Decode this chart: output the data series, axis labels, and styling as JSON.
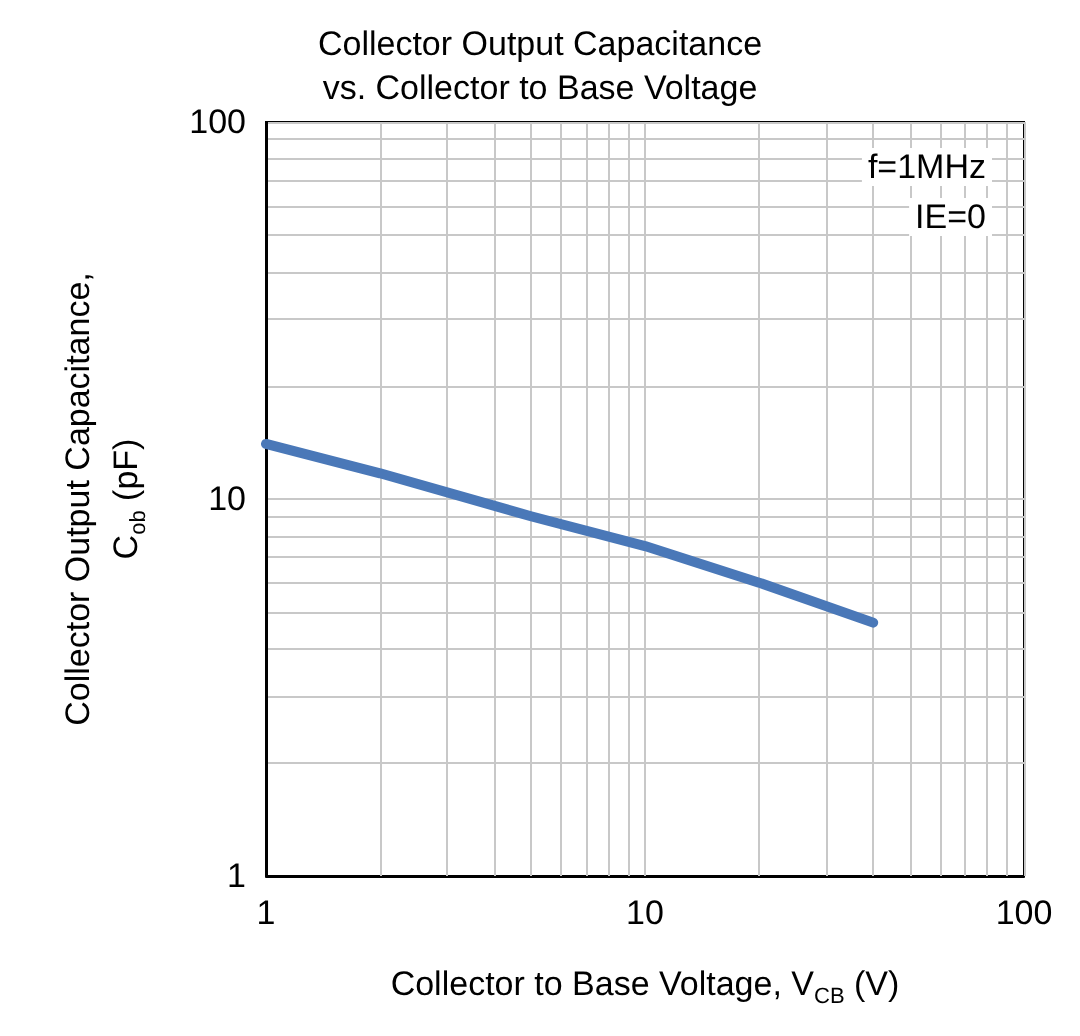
{
  "chart_data": {
    "type": "line",
    "title": "Collector Output Capacitance\nvs. Collector to Base Voltage",
    "xlabel": "Collector to Base Voltage, V$_{CB}$ (V)",
    "ylabel": "Collector Output Capacitance,\nC$_{ob}$ (pF)",
    "annotations": [
      "f=1MHz",
      "IE=0"
    ],
    "x": [
      1,
      2,
      5,
      10,
      20,
      40
    ],
    "series": [
      {
        "color": "#4a78b8",
        "values": [
          14,
          11.7,
          9.0,
          7.5,
          6.0,
          4.7
        ]
      }
    ],
    "xlim": [
      1,
      100
    ],
    "ylim": [
      1,
      100
    ],
    "xticks": [
      1,
      10,
      100
    ],
    "yticks": [
      1,
      10,
      100
    ],
    "log": "xy",
    "grid": true,
    "marker": "none",
    "line_style": "solid"
  }
}
